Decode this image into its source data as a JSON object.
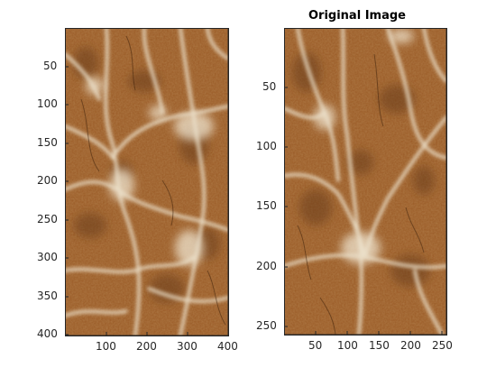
{
  "figure": {
    "left_panel": {
      "title": "",
      "xticks": [
        "100",
        "200",
        "300",
        "400"
      ],
      "yticks": [
        "50",
        "100",
        "150",
        "200",
        "250",
        "300",
        "350",
        "400"
      ]
    },
    "right_panel": {
      "title": "Original Image",
      "xticks": [
        "50",
        "100",
        "150",
        "200",
        "250"
      ],
      "yticks": [
        "50",
        "100",
        "150",
        "200",
        "250"
      ]
    }
  },
  "chart_data": [
    {
      "type": "image",
      "title": "",
      "xlim": [
        0.5,
        400.5
      ],
      "ylim": [
        0.5,
        400.5
      ],
      "y_direction": "reverse",
      "xticks": [
        100,
        200,
        300,
        400
      ],
      "yticks": [
        50,
        100,
        150,
        200,
        250,
        300,
        350,
        400
      ],
      "description": "brown cracked texture image"
    },
    {
      "type": "image",
      "title": "Original Image",
      "xlim": [
        0.5,
        256.5
      ],
      "ylim": [
        0.5,
        256.5
      ],
      "y_direction": "reverse",
      "xticks": [
        50,
        100,
        150,
        200,
        250
      ],
      "yticks": [
        50,
        100,
        150,
        200,
        250
      ]
    }
  ],
  "colors": {
    "texture_base": "#9a5a26",
    "texture_dark": "#5e3412",
    "crack_light": "#e9dcc4",
    "axis": "#262626"
  }
}
